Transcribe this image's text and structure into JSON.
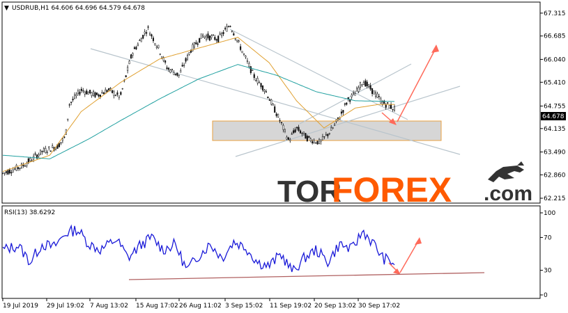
{
  "header": {
    "symbol_line": "USDRUB,H1  64.606 64.696 64.579 64.678",
    "rsi_line": "RSI(13) 38.6292"
  },
  "watermark": {
    "part1": "TOR",
    "part2": "FOREX",
    "part3": ".com",
    "logo": "bull-icon"
  },
  "colors": {
    "candles": "#111111",
    "ma_fast": "#e0a030",
    "ma_slow": "#20a0a0",
    "channel": "#b8c4cc",
    "zone_fill": "#d6d6d6",
    "zone_border": "#e8a040",
    "arrows": "#ff6a5a",
    "rsi": "#1919d8",
    "rsi_trend": "#b06060",
    "brand_dark": "#333333",
    "brand_orange": "#ff5a00",
    "price_tag": "#000000"
  },
  "chart_data": [
    {
      "type": "candlestick",
      "symbol": "USDRUB",
      "timeframe": "H1",
      "ohlc_last": {
        "open": 64.606,
        "high": 64.696,
        "low": 64.579,
        "close": 64.678
      },
      "current_price_label": "64.678",
      "x_ticks": [
        "19 Jul 2019",
        "29 Jul 19:02",
        "7 Aug 13:02",
        "15 Aug 17:02",
        "26 Aug 11:02",
        "3 Sep 15:02",
        "11 Sep 19:02",
        "20 Sep 13:02",
        "30 Sep 17:02"
      ],
      "y_ticks": [
        62.215,
        62.86,
        63.49,
        64.135,
        64.755,
        65.41,
        66.04,
        66.685,
        67.315
      ],
      "y_tick_labels": [
        "62.215",
        "62.860",
        "63.490",
        "64.135",
        "64.755",
        "65.410",
        "66.040",
        "66.685",
        "67.315"
      ],
      "ylim": [
        62.1,
        67.6
      ],
      "price_path": [
        {
          "t": 0,
          "p": 62.9
        },
        {
          "t": 0.05,
          "p": 63.1
        },
        {
          "t": 0.1,
          "p": 63.5
        },
        {
          "t": 0.14,
          "p": 63.65
        },
        {
          "t": 0.16,
          "p": 63.9
        },
        {
          "t": 0.17,
          "p": 64.8
        },
        {
          "t": 0.2,
          "p": 65.2
        },
        {
          "t": 0.24,
          "p": 65.05
        },
        {
          "t": 0.27,
          "p": 65.2
        },
        {
          "t": 0.3,
          "p": 65.0
        },
        {
          "t": 0.33,
          "p": 66.2
        },
        {
          "t": 0.37,
          "p": 66.9
        },
        {
          "t": 0.4,
          "p": 66.3
        },
        {
          "t": 0.42,
          "p": 65.8
        },
        {
          "t": 0.45,
          "p": 65.6
        },
        {
          "t": 0.48,
          "p": 66.3
        },
        {
          "t": 0.51,
          "p": 66.7
        },
        {
          "t": 0.55,
          "p": 66.6
        },
        {
          "t": 0.58,
          "p": 67.0
        },
        {
          "t": 0.61,
          "p": 66.3
        },
        {
          "t": 0.64,
          "p": 65.6
        },
        {
          "t": 0.67,
          "p": 65.2
        },
        {
          "t": 0.71,
          "p": 64.3
        },
        {
          "t": 0.73,
          "p": 63.8
        },
        {
          "t": 0.75,
          "p": 64.15
        },
        {
          "t": 0.78,
          "p": 63.85
        },
        {
          "t": 0.81,
          "p": 63.75
        },
        {
          "t": 0.84,
          "p": 64.1
        },
        {
          "t": 0.86,
          "p": 64.45
        },
        {
          "t": 0.88,
          "p": 64.9
        },
        {
          "t": 0.9,
          "p": 65.1
        },
        {
          "t": 0.92,
          "p": 65.45
        },
        {
          "t": 0.95,
          "p": 65.1
        },
        {
          "t": 0.97,
          "p": 64.85
        },
        {
          "t": 1.0,
          "p": 64.68
        }
      ],
      "ma_fast_path": [
        {
          "t": 0,
          "p": 62.95
        },
        {
          "t": 0.12,
          "p": 63.4
        },
        {
          "t": 0.2,
          "p": 64.6
        },
        {
          "t": 0.3,
          "p": 65.4
        },
        {
          "t": 0.4,
          "p": 66.05
        },
        {
          "t": 0.5,
          "p": 66.35
        },
        {
          "t": 0.6,
          "p": 66.65
        },
        {
          "t": 0.68,
          "p": 65.95
        },
        {
          "t": 0.75,
          "p": 64.9
        },
        {
          "t": 0.82,
          "p": 64.15
        },
        {
          "t": 0.9,
          "p": 64.7
        },
        {
          "t": 0.96,
          "p": 64.8
        },
        {
          "t": 1.0,
          "p": 64.8
        }
      ],
      "ma_slow_path": [
        {
          "t": 0,
          "p": 63.4
        },
        {
          "t": 0.12,
          "p": 63.3
        },
        {
          "t": 0.22,
          "p": 63.85
        },
        {
          "t": 0.3,
          "p": 64.35
        },
        {
          "t": 0.4,
          "p": 64.95
        },
        {
          "t": 0.5,
          "p": 65.5
        },
        {
          "t": 0.6,
          "p": 65.9
        },
        {
          "t": 0.7,
          "p": 65.6
        },
        {
          "t": 0.8,
          "p": 65.15
        },
        {
          "t": 0.9,
          "p": 64.9
        },
        {
          "t": 1.0,
          "p": 64.88
        }
      ]
    },
    {
      "type": "line",
      "indicator": "RSI(13)",
      "current_value": 38.6292,
      "y_ticks": [
        0,
        30,
        70,
        100
      ],
      "y_tick_labels": [
        "0",
        "30",
        "70",
        "100"
      ],
      "ylim": [
        0,
        100
      ],
      "path": [
        {
          "t": 0,
          "v": 55
        },
        {
          "t": 0.04,
          "v": 60
        },
        {
          "t": 0.07,
          "v": 40
        },
        {
          "t": 0.1,
          "v": 62
        },
        {
          "t": 0.13,
          "v": 58
        },
        {
          "t": 0.16,
          "v": 75
        },
        {
          "t": 0.19,
          "v": 80
        },
        {
          "t": 0.22,
          "v": 62
        },
        {
          "t": 0.25,
          "v": 55
        },
        {
          "t": 0.29,
          "v": 68
        },
        {
          "t": 0.32,
          "v": 45
        },
        {
          "t": 0.35,
          "v": 60
        },
        {
          "t": 0.38,
          "v": 70
        },
        {
          "t": 0.41,
          "v": 55
        },
        {
          "t": 0.44,
          "v": 62
        },
        {
          "t": 0.47,
          "v": 30
        },
        {
          "t": 0.5,
          "v": 48
        },
        {
          "t": 0.53,
          "v": 62
        },
        {
          "t": 0.56,
          "v": 45
        },
        {
          "t": 0.59,
          "v": 65
        },
        {
          "t": 0.62,
          "v": 58
        },
        {
          "t": 0.65,
          "v": 40
        },
        {
          "t": 0.68,
          "v": 35
        },
        {
          "t": 0.71,
          "v": 50
        },
        {
          "t": 0.74,
          "v": 28
        },
        {
          "t": 0.77,
          "v": 45
        },
        {
          "t": 0.8,
          "v": 55
        },
        {
          "t": 0.83,
          "v": 40
        },
        {
          "t": 0.86,
          "v": 62
        },
        {
          "t": 0.89,
          "v": 55
        },
        {
          "t": 0.92,
          "v": 78
        },
        {
          "t": 0.95,
          "v": 60
        },
        {
          "t": 0.97,
          "v": 45
        },
        {
          "t": 1.0,
          "v": 38.6
        }
      ]
    }
  ]
}
